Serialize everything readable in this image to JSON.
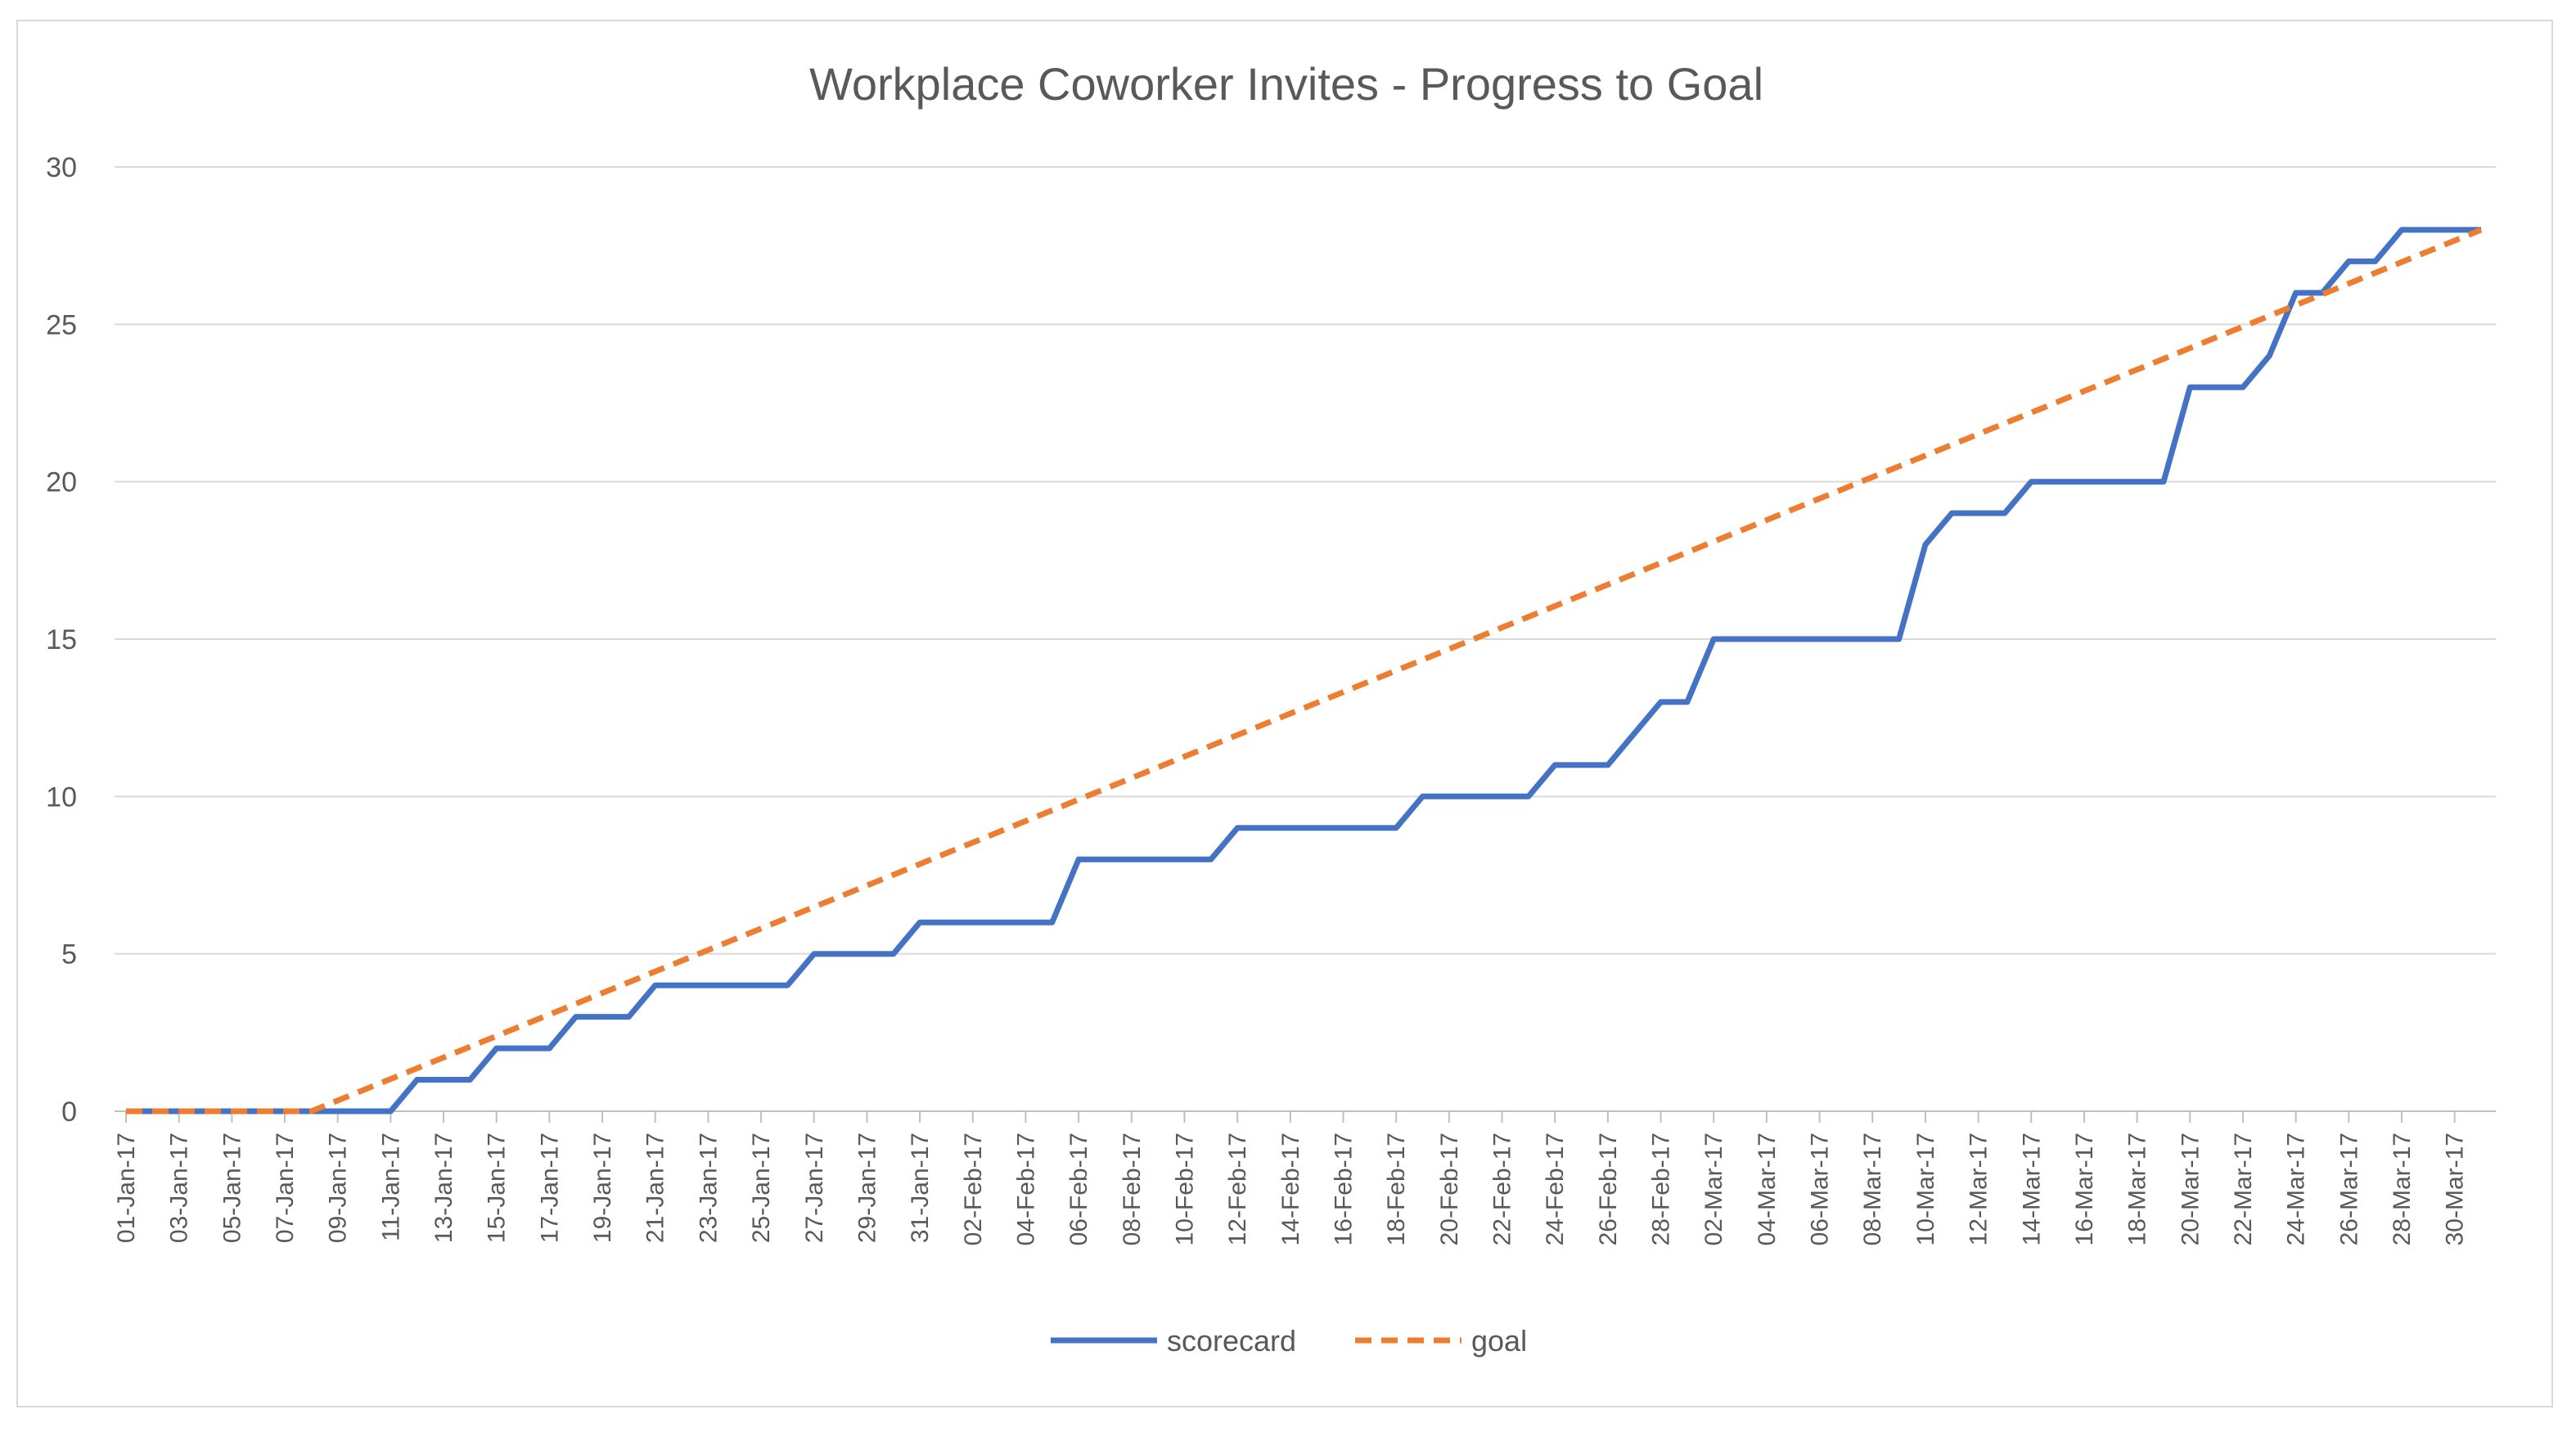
{
  "chart_data": {
    "type": "line",
    "title": "Workplace Coworker Invites -  Progress to Goal",
    "xlabel": "",
    "ylabel": "",
    "ylim": [
      0,
      30
    ],
    "yticks": [
      0,
      5,
      10,
      15,
      20,
      25,
      30
    ],
    "x_range": [
      "2017-01-01",
      "2017-03-31"
    ],
    "xtick_labels": [
      "01-Jan-17",
      "03-Jan-17",
      "05-Jan-17",
      "07-Jan-17",
      "09-Jan-17",
      "11-Jan-17",
      "13-Jan-17",
      "15-Jan-17",
      "17-Jan-17",
      "19-Jan-17",
      "21-Jan-17",
      "23-Jan-17",
      "25-Jan-17",
      "27-Jan-17",
      "29-Jan-17",
      "31-Jan-17",
      "02-Feb-17",
      "04-Feb-17",
      "06-Feb-17",
      "08-Feb-17",
      "10-Feb-17",
      "12-Feb-17",
      "14-Feb-17",
      "16-Feb-17",
      "18-Feb-17",
      "20-Feb-17",
      "22-Feb-17",
      "24-Feb-17",
      "26-Feb-17",
      "28-Feb-17",
      "02-Mar-17",
      "04-Mar-17",
      "06-Mar-17",
      "08-Mar-17",
      "10-Mar-17",
      "12-Mar-17",
      "14-Mar-17",
      "16-Mar-17",
      "18-Mar-17",
      "20-Mar-17",
      "22-Mar-17",
      "24-Mar-17",
      "26-Mar-17",
      "28-Mar-17",
      "30-Mar-17"
    ],
    "grid": true,
    "legend_position": "bottom",
    "series": [
      {
        "name": "scorecard",
        "color": "#4472C4",
        "style": "solid",
        "x": [
          "2017-01-01",
          "2017-01-11",
          "2017-01-12",
          "2017-01-14",
          "2017-01-15",
          "2017-01-17",
          "2017-01-18",
          "2017-01-20",
          "2017-01-21",
          "2017-01-26",
          "2017-01-27",
          "2017-01-30",
          "2017-01-31",
          "2017-02-05",
          "2017-02-06",
          "2017-02-11",
          "2017-02-12",
          "2017-02-18",
          "2017-02-19",
          "2017-02-23",
          "2017-02-24",
          "2017-02-26",
          "2017-02-27",
          "2017-02-28",
          "2017-03-01",
          "2017-03-02",
          "2017-03-09",
          "2017-03-10",
          "2017-03-11",
          "2017-03-13",
          "2017-03-14",
          "2017-03-19",
          "2017-03-20",
          "2017-03-22",
          "2017-03-23",
          "2017-03-24",
          "2017-03-25",
          "2017-03-26",
          "2017-03-27",
          "2017-03-28",
          "2017-03-31"
        ],
        "values": [
          0,
          0,
          1,
          1,
          2,
          2,
          3,
          3,
          4,
          4,
          5,
          5,
          6,
          6,
          8,
          8,
          9,
          9,
          10,
          10,
          11,
          11,
          12,
          13,
          13,
          15,
          15,
          18,
          19,
          19,
          20,
          20,
          23,
          23,
          24,
          26,
          26,
          27,
          27,
          28,
          28
        ]
      },
      {
        "name": "goal",
        "color": "#ED7D31",
        "style": "dashed",
        "x": [
          "2017-01-01",
          "2017-01-08",
          "2017-03-31"
        ],
        "values": [
          0,
          0,
          28
        ]
      }
    ]
  },
  "colors": {
    "gridline": "#d9d9d9",
    "axis": "#bfbfbf",
    "text": "#595959"
  }
}
